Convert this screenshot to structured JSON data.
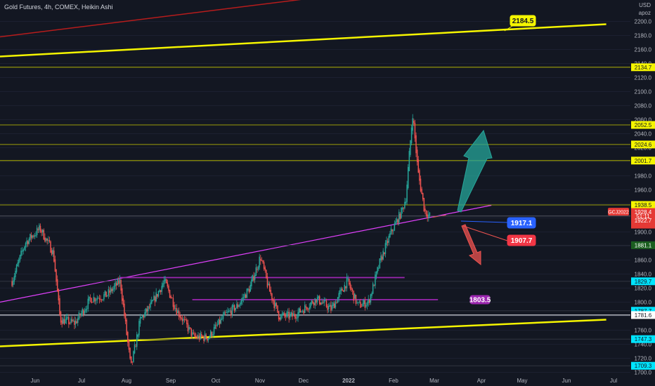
{
  "header": {
    "title": "Gold Futures, 4h, COMEX, Heikin Ashi",
    "currency": "USD",
    "unit": "apoz"
  },
  "colors": {
    "background": "#131722",
    "bull": "#26a69a",
    "bear": "#ef5350",
    "yellow_line": "#f5f500",
    "magenta_line": "#e040fb",
    "purple_line": "#9c27b0",
    "red_line": "#b71c1c",
    "axis_text": "#b2b5be"
  },
  "chart_data": {
    "type": "candlestick",
    "title": "Gold Futures, 4h, COMEX, Heikin Ashi",
    "ylim": [
      1700,
      2220
    ],
    "y_ticks": [
      1700,
      1720,
      1740,
      1760,
      1780,
      1800,
      1820,
      1840,
      1860,
      1880,
      1900,
      1920,
      1940,
      1960,
      1980,
      2000,
      2020,
      2040,
      2060,
      2080,
      2100,
      2120,
      2140,
      2160,
      2180,
      2200
    ],
    "x_labels": [
      "Jun",
      "Jul",
      "Aug",
      "Sep",
      "Oct",
      "Nov",
      "Dec",
      "2022",
      "Feb",
      "Mar",
      "Apr",
      "May",
      "Jun",
      "Jul"
    ],
    "price_path": [
      [
        "2021-05-12",
        1830
      ],
      [
        "2021-05-22",
        1885
      ],
      [
        "2021-06-02",
        1905
      ],
      [
        "2021-06-12",
        1870
      ],
      [
        "2021-06-17",
        1775
      ],
      [
        "2021-06-28",
        1770
      ],
      [
        "2021-07-10",
        1805
      ],
      [
        "2021-07-22",
        1810
      ],
      [
        "2021-08-01",
        1830
      ],
      [
        "2021-08-09",
        1705
      ],
      [
        "2021-08-16",
        1775
      ],
      [
        "2021-08-24",
        1795
      ],
      [
        "2021-09-03",
        1830
      ],
      [
        "2021-09-12",
        1790
      ],
      [
        "2021-09-25",
        1750
      ],
      [
        "2021-10-06",
        1750
      ],
      [
        "2021-10-18",
        1780
      ],
      [
        "2021-10-28",
        1795
      ],
      [
        "2021-11-06",
        1820
      ],
      [
        "2021-11-14",
        1865
      ],
      [
        "2021-11-20",
        1820
      ],
      [
        "2021-11-28",
        1780
      ],
      [
        "2021-12-08",
        1780
      ],
      [
        "2021-12-16",
        1790
      ],
      [
        "2021-12-26",
        1805
      ],
      [
        "2022-01-06",
        1790
      ],
      [
        "2022-01-18",
        1830
      ],
      [
        "2022-01-26",
        1795
      ],
      [
        "2022-02-03",
        1800
      ],
      [
        "2022-02-12",
        1860
      ],
      [
        "2022-02-20",
        1900
      ],
      [
        "2022-02-28",
        1930
      ],
      [
        "2022-03-03",
        1950
      ],
      [
        "2022-03-08",
        2070
      ],
      [
        "2022-03-12",
        1985
      ],
      [
        "2022-03-17",
        1930
      ],
      [
        "2022-03-21",
        1922
      ]
    ],
    "series": [
      {
        "name": "Yellow trendline (upper)",
        "points": [
          [
            "2021-05-03",
            2150
          ],
          [
            "2022-07-31",
            2196
          ]
        ]
      },
      {
        "name": "Yellow trendline (lower)",
        "points": [
          [
            "2021-05-03",
            1737
          ],
          [
            "2022-07-31",
            1775
          ]
        ]
      },
      {
        "name": "Red trendline",
        "points": [
          [
            "2021-05-03",
            2178
          ],
          [
            "2021-12-22",
            2233
          ]
        ]
      },
      {
        "name": "Magenta trendline",
        "points": [
          [
            "2021-05-03",
            1800
          ],
          [
            "2022-05-06",
            1938
          ]
        ]
      },
      {
        "name": "Purple line",
        "points": [
          [
            "2021-08-01",
            1835
          ],
          [
            "2022-03-02",
            1835
          ]
        ]
      },
      {
        "name": "Purple line",
        "points": [
          [
            "2021-09-24",
            1803.5
          ],
          [
            "2022-03-27",
            1803.5
          ]
        ]
      },
      {
        "name": "Red line",
        "points": [
          [
            "2022-03-23",
            1921
          ],
          [
            "2022-04-02",
            1924
          ]
        ]
      }
    ],
    "hlines": [
      {
        "value": 2134.7,
        "label": "2134.7",
        "style": "yellow"
      },
      {
        "value": 2052.5,
        "label": "2052.5",
        "style": "yellow"
      },
      {
        "value": 2024.6,
        "label": "2024.6",
        "style": "yellow"
      },
      {
        "value": 2001.7,
        "label": "2001.7",
        "style": "yellow"
      },
      {
        "value": 1938.5,
        "label": "1938.5",
        "style": "yellow"
      },
      {
        "value": 1922.7,
        "label": "1922.7",
        "style": "gray"
      },
      {
        "value": 1881.1,
        "label": "1881.1",
        "style": "dark"
      },
      {
        "value": 1829.7,
        "label": "1829.7",
        "style": "cyan"
      },
      {
        "value": 1787.7,
        "label": "1787.7",
        "style": "cyan"
      },
      {
        "value": 1781.6,
        "label": "1781.6",
        "style": "white"
      },
      {
        "value": 1747.3,
        "label": "1747.3",
        "style": "cyan"
      },
      {
        "value": 1709.3,
        "label": "1709.3",
        "style": "cyan"
      }
    ],
    "axis_labels": [
      {
        "value": 1928.4,
        "label": "1928.4",
        "color": "#e53935"
      },
      {
        "value": 1922.7,
        "label": "51:11",
        "color": "#e53935"
      },
      {
        "value": 1916.7,
        "label": "1922.7",
        "color": "#e53935"
      }
    ],
    "price_tag": {
      "value": 1928.4,
      "label": "GCJ2022"
    },
    "callouts": [
      {
        "label": "2184.5",
        "style": "yellow"
      },
      {
        "label": "1917.1",
        "style": "blue"
      },
      {
        "label": "1907.7",
        "style": "red"
      },
      {
        "label": "1803.5",
        "style": "purple"
      }
    ],
    "arrows": [
      {
        "direction": "up",
        "color": "#26a69a"
      },
      {
        "direction": "down",
        "color": "#ef5350"
      }
    ]
  }
}
